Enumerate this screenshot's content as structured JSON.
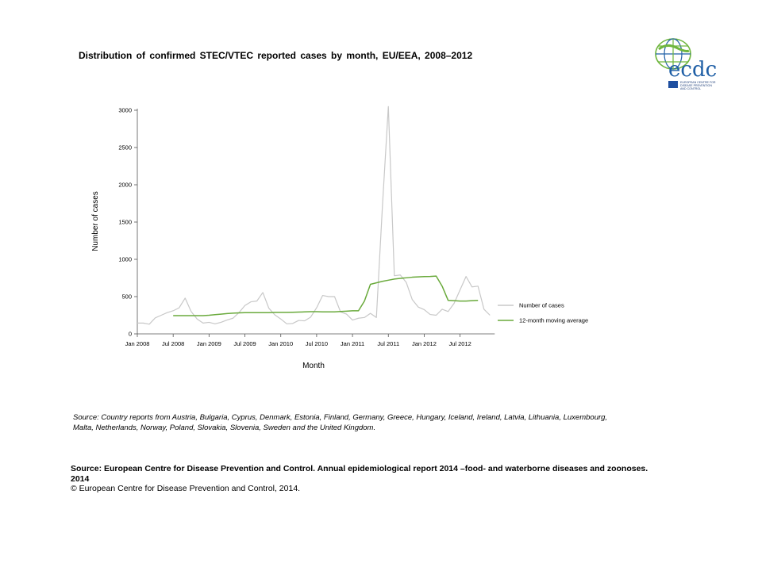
{
  "page": {
    "title": "Distribution  of confirmed  STEC/VTEC  reported cases by month, EU/EEA,  2008–2012",
    "note": "Source: Country reports from Austria, Bulgaria, Cyprus, Denmark, Estonia, Finland, Germany, Greece, Hungary, Iceland, Ireland, Latvia, Lithuania, Luxembourg, Malta, Netherlands, Norway, Poland, Slovakia, Slovenia, Sweden and the United Kingdom.",
    "source_bold": "Source: European Centre for Disease Prevention and Control.  Annual epidemiological report 2014 –food- and waterborne diseases and zoonoses. 2014",
    "copyright": "© European Centre for Disease Prevention and Control, 2014.",
    "logo": {
      "wordmark": "ecdc",
      "tagline": "EUROPEAN CENTRE FOR DISEASE PREVENTION AND CONTROL",
      "colors": {
        "green": "#6fb63e",
        "blue": "#1f5fa6",
        "text": "#1f3f7a"
      }
    }
  },
  "chart_data": {
    "type": "line",
    "xlabel": "Month",
    "ylabel": "Number of cases",
    "ylim": [
      0,
      3000
    ],
    "yticks": [
      0,
      500,
      1000,
      1500,
      2000,
      2500,
      3000
    ],
    "xticks": [
      {
        "label": "Jan 2008",
        "index": 0
      },
      {
        "label": "Jul 2008",
        "index": 6
      },
      {
        "label": "Jan 2009",
        "index": 12
      },
      {
        "label": "Jul 2009",
        "index": 18
      },
      {
        "label": "Jan 2010",
        "index": 24
      },
      {
        "label": "Jul 2010",
        "index": 30
      },
      {
        "label": "Jan 2011",
        "index": 36
      },
      {
        "label": "Jul 2011",
        "index": 42
      },
      {
        "label": "Jan 2012",
        "index": 48
      },
      {
        "label": "Jul 2012",
        "index": 54
      }
    ],
    "legend_position": "right",
    "series": [
      {
        "name": "Number of cases",
        "color": "#c8c8c8",
        "start_index": 0,
        "values": [
          145,
          145,
          130,
          215,
          250,
          285,
          310,
          350,
          480,
          300,
          200,
          145,
          155,
          135,
          155,
          185,
          210,
          285,
          380,
          430,
          440,
          555,
          345,
          255,
          200,
          135,
          140,
          180,
          175,
          225,
          350,
          515,
          500,
          500,
          295,
          265,
          185,
          210,
          220,
          275,
          220,
          1700,
          3050,
          780,
          790,
          690,
          460,
          360,
          325,
          260,
          250,
          330,
          300,
          410,
          590,
          770,
          630,
          640,
          330,
          250
        ]
      },
      {
        "name": "12-month moving average",
        "color": "#6aaa3c",
        "start_index": 6,
        "values": [
          245,
          245,
          245,
          245,
          245,
          245,
          250,
          258,
          265,
          272,
          278,
          282,
          285,
          285,
          285,
          285,
          285,
          288,
          288,
          288,
          290,
          292,
          295,
          298,
          298,
          295,
          295,
          295,
          300,
          305,
          310,
          310,
          440,
          665,
          685,
          705,
          720,
          735,
          745,
          752,
          760,
          765,
          768,
          770,
          775,
          640,
          450,
          445,
          440,
          440,
          445,
          450
        ]
      }
    ]
  }
}
